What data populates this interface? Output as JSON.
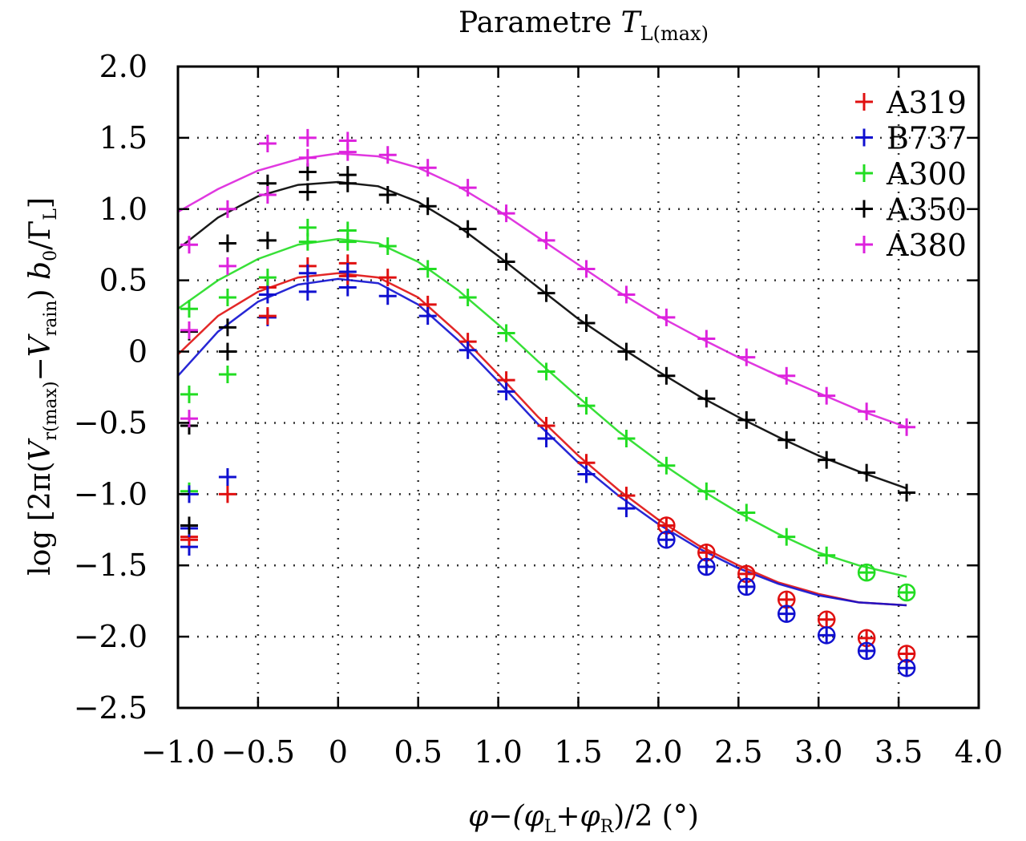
{
  "chart_data": {
    "type": "line",
    "title": "Parametre T_L(max)",
    "title_parts": {
      "main": "Parametre ",
      "italic": "T",
      "sub": "L(max)"
    },
    "xlabel": "φ−(φL+φR)/2 (°)",
    "xlabel_parts": {
      "a": "φ−(φ",
      "sub1": "L",
      "b": "+φ",
      "sub2": "R",
      "c": ")/2 (°)"
    },
    "ylabel": "log [2π(V_r(max) − V_rain) b0/ΓL]",
    "ylabel_parts": {
      "a": "log [2π(",
      "v1": "V",
      "sub1": "r(max)",
      "minus": "−",
      "v2": "V",
      "sub2": "rain",
      "b": ") ",
      "b0": "b",
      "sub3": "0",
      "c": "/Γ",
      "sub4": "L",
      "d": "]"
    },
    "xlim": [
      -1.0,
      4.0
    ],
    "ylim": [
      -2.5,
      2.0
    ],
    "xticks": [
      -1.0,
      -0.5,
      0,
      0.5,
      1.0,
      1.5,
      2.0,
      2.5,
      3.0,
      3.5,
      4.0
    ],
    "xtick_labels": [
      "−1.0",
      "−0.5",
      "0",
      "0.5",
      "1.0",
      "1.5",
      "2.0",
      "2.5",
      "3.0",
      "3.5",
      "4.0"
    ],
    "yticks": [
      2.0,
      1.5,
      1.0,
      0.5,
      0,
      -0.5,
      -1.0,
      -1.5,
      -2.0,
      -2.5
    ],
    "ytick_labels": [
      "2.0",
      "1.5",
      "1.0",
      "0.5",
      "0",
      "−0.5",
      "−1.0",
      "−1.5",
      "−2.0",
      "−2.5"
    ],
    "grid": true,
    "legend_position": "top-right",
    "x": [
      -0.94,
      -0.69,
      -0.44,
      -0.19,
      0.06,
      0.31,
      0.56,
      0.81,
      1.05,
      1.3,
      1.55,
      1.8,
      2.05,
      2.3,
      2.55,
      2.8,
      3.05,
      3.3,
      3.55
    ],
    "series": [
      {
        "name": "A319",
        "color": "#e01010",
        "points": [
          [
            -0.93,
            -1.32
          ],
          [
            -0.69,
            -1.0
          ],
          [
            -0.44,
            0.45
          ],
          [
            -0.19,
            0.6
          ],
          [
            0.06,
            0.62
          ],
          [
            0.31,
            0.52
          ],
          [
            0.56,
            0.33
          ],
          [
            0.81,
            0.07
          ],
          [
            1.05,
            -0.2
          ],
          [
            1.3,
            -0.52
          ],
          [
            1.55,
            -0.78
          ],
          [
            1.8,
            -1.01
          ],
          [
            2.05,
            -1.22
          ],
          [
            2.3,
            -1.41
          ],
          [
            2.55,
            -1.56
          ],
          [
            2.8,
            -1.74
          ],
          [
            3.05,
            -1.88
          ],
          [
            3.3,
            -2.01
          ],
          [
            3.55,
            -2.12
          ]
        ],
        "circled_from_x": 2.05,
        "fit": [
          [
            -1.0,
            -0.02
          ],
          [
            -0.75,
            0.25
          ],
          [
            -0.5,
            0.42
          ],
          [
            -0.25,
            0.52
          ],
          [
            0.0,
            0.55
          ],
          [
            0.25,
            0.52
          ],
          [
            0.5,
            0.38
          ],
          [
            0.75,
            0.13
          ],
          [
            1.0,
            -0.16
          ],
          [
            1.25,
            -0.46
          ],
          [
            1.5,
            -0.73
          ],
          [
            1.75,
            -0.97
          ],
          [
            2.0,
            -1.18
          ],
          [
            2.25,
            -1.36
          ],
          [
            2.5,
            -1.5
          ],
          [
            2.75,
            -1.62
          ],
          [
            3.0,
            -1.7
          ],
          [
            3.25,
            -1.76
          ],
          [
            3.55,
            -1.78
          ]
        ]
      },
      {
        "name": "B737",
        "color": "#1010d0",
        "points": [
          [
            -0.93,
            -1.37
          ],
          [
            -0.69,
            -0.88
          ],
          [
            -0.44,
            0.24
          ],
          [
            -0.19,
            0.42
          ],
          [
            0.06,
            0.45
          ],
          [
            0.31,
            0.39
          ],
          [
            0.56,
            0.25
          ],
          [
            0.81,
            0.01
          ],
          [
            1.05,
            -0.28
          ],
          [
            1.3,
            -0.61
          ],
          [
            1.55,
            -0.86
          ],
          [
            1.8,
            -1.1
          ],
          [
            2.05,
            -1.32
          ],
          [
            2.3,
            -1.51
          ],
          [
            2.55,
            -1.65
          ],
          [
            2.8,
            -1.84
          ],
          [
            3.05,
            -1.99
          ],
          [
            3.3,
            -2.1
          ],
          [
            3.55,
            -2.22
          ]
        ],
        "circled_from_x": 2.05,
        "fit": [
          [
            -1.0,
            -0.17
          ],
          [
            -0.75,
            0.14
          ],
          [
            -0.5,
            0.35
          ],
          [
            -0.25,
            0.47
          ],
          [
            0.0,
            0.51
          ],
          [
            0.25,
            0.48
          ],
          [
            0.5,
            0.33
          ],
          [
            0.75,
            0.08
          ],
          [
            1.0,
            -0.21
          ],
          [
            1.25,
            -0.51
          ],
          [
            1.5,
            -0.78
          ],
          [
            1.75,
            -1.01
          ],
          [
            2.0,
            -1.21
          ],
          [
            2.25,
            -1.38
          ],
          [
            2.5,
            -1.52
          ],
          [
            2.75,
            -1.63
          ],
          [
            3.0,
            -1.71
          ],
          [
            3.25,
            -1.76
          ],
          [
            3.55,
            -1.78
          ]
        ]
      },
      {
        "name": "A300",
        "color": "#22dd22",
        "points": [
          [
            -0.93,
            -0.98
          ],
          [
            -0.69,
            -0.16
          ],
          [
            -0.44,
            0.52
          ],
          [
            -0.19,
            0.87
          ],
          [
            0.06,
            0.85
          ],
          [
            0.31,
            0.74
          ],
          [
            0.56,
            0.58
          ],
          [
            0.81,
            0.38
          ],
          [
            1.05,
            0.13
          ],
          [
            1.3,
            -0.14
          ],
          [
            1.55,
            -0.38
          ],
          [
            1.8,
            -0.61
          ],
          [
            2.05,
            -0.8
          ],
          [
            2.3,
            -0.98
          ],
          [
            2.55,
            -1.13
          ],
          [
            2.8,
            -1.3
          ],
          [
            3.05,
            -1.43
          ],
          [
            3.3,
            -1.55
          ],
          [
            3.55,
            -1.69
          ]
        ],
        "circled_from_x": 3.3,
        "fit": [
          [
            -1.0,
            0.3
          ],
          [
            -0.75,
            0.5
          ],
          [
            -0.5,
            0.65
          ],
          [
            -0.25,
            0.75
          ],
          [
            0.0,
            0.79
          ],
          [
            0.25,
            0.76
          ],
          [
            0.5,
            0.63
          ],
          [
            0.75,
            0.43
          ],
          [
            1.0,
            0.19
          ],
          [
            1.25,
            -0.07
          ],
          [
            1.5,
            -0.32
          ],
          [
            1.75,
            -0.56
          ],
          [
            2.0,
            -0.77
          ],
          [
            2.25,
            -0.96
          ],
          [
            2.5,
            -1.13
          ],
          [
            2.75,
            -1.28
          ],
          [
            3.0,
            -1.41
          ],
          [
            3.25,
            -1.5
          ],
          [
            3.55,
            -1.58
          ]
        ]
      },
      {
        "name": "A350",
        "color": "#000000",
        "points": [
          [
            -0.93,
            -0.52
          ],
          [
            -0.69,
            0.0
          ],
          [
            -0.44,
            0.78
          ],
          [
            -0.19,
            1.26
          ],
          [
            0.06,
            1.24
          ],
          [
            0.31,
            1.1
          ],
          [
            0.56,
            1.02
          ],
          [
            0.81,
            0.86
          ],
          [
            1.05,
            0.63
          ],
          [
            1.3,
            0.41
          ],
          [
            1.55,
            0.2
          ],
          [
            1.8,
            0.0
          ],
          [
            2.05,
            -0.17
          ],
          [
            2.3,
            -0.33
          ],
          [
            2.55,
            -0.48
          ],
          [
            2.8,
            -0.62
          ],
          [
            3.05,
            -0.76
          ],
          [
            3.3,
            -0.85
          ],
          [
            3.55,
            -0.99
          ]
        ],
        "circled_from_x": null,
        "fit": [
          [
            -1.0,
            0.72
          ],
          [
            -0.75,
            0.94
          ],
          [
            -0.5,
            1.09
          ],
          [
            -0.25,
            1.17
          ],
          [
            0.0,
            1.19
          ],
          [
            0.25,
            1.16
          ],
          [
            0.5,
            1.05
          ],
          [
            0.75,
            0.88
          ],
          [
            1.0,
            0.67
          ],
          [
            1.25,
            0.45
          ],
          [
            1.5,
            0.23
          ],
          [
            1.75,
            0.04
          ],
          [
            2.0,
            -0.14
          ],
          [
            2.25,
            -0.31
          ],
          [
            2.5,
            -0.46
          ],
          [
            2.75,
            -0.6
          ],
          [
            3.0,
            -0.73
          ],
          [
            3.25,
            -0.84
          ],
          [
            3.55,
            -0.96
          ]
        ]
      },
      {
        "name": "A380",
        "color": "#dd22dd",
        "points": [
          [
            -0.93,
            0.75
          ],
          [
            -0.69,
            0.6
          ],
          [
            -0.44,
            1.46
          ],
          [
            -0.19,
            1.5
          ],
          [
            0.06,
            1.48
          ],
          [
            0.31,
            1.38
          ],
          [
            0.56,
            1.29
          ],
          [
            0.81,
            1.15
          ],
          [
            1.05,
            0.97
          ],
          [
            1.3,
            0.78
          ],
          [
            1.55,
            0.58
          ],
          [
            1.8,
            0.4
          ],
          [
            2.05,
            0.24
          ],
          [
            2.3,
            0.09
          ],
          [
            2.55,
            -0.04
          ],
          [
            2.8,
            -0.17
          ],
          [
            3.05,
            -0.31
          ],
          [
            3.3,
            -0.42
          ],
          [
            3.55,
            -0.53
          ]
        ],
        "circled_from_x": null,
        "fit": [
          [
            -1.0,
            0.98
          ],
          [
            -0.75,
            1.14
          ],
          [
            -0.5,
            1.27
          ],
          [
            -0.25,
            1.35
          ],
          [
            0.0,
            1.39
          ],
          [
            0.25,
            1.37
          ],
          [
            0.5,
            1.29
          ],
          [
            0.75,
            1.16
          ],
          [
            1.0,
            0.99
          ],
          [
            1.25,
            0.8
          ],
          [
            1.5,
            0.61
          ],
          [
            1.75,
            0.42
          ],
          [
            2.0,
            0.25
          ],
          [
            2.25,
            0.1
          ],
          [
            2.5,
            -0.04
          ],
          [
            2.75,
            -0.17
          ],
          [
            3.0,
            -0.29
          ],
          [
            3.25,
            -0.41
          ],
          [
            3.55,
            -0.53
          ]
        ]
      }
    ],
    "extra_points": [
      {
        "series": "A319",
        "x": -0.93,
        "y": -1.3
      },
      {
        "series": "B737",
        "x": -0.93,
        "y": -1.24
      },
      {
        "series": "B737",
        "x": -0.93,
        "y": -1.0
      },
      {
        "series": "A350",
        "x": -0.93,
        "y": -1.22
      },
      {
        "series": "A350",
        "x": -0.93,
        "y": 0.14
      },
      {
        "series": "A300",
        "x": -0.93,
        "y": -0.3
      },
      {
        "series": "A300",
        "x": -0.93,
        "y": 0.3
      },
      {
        "series": "A380",
        "x": -0.93,
        "y": -0.47
      },
      {
        "series": "A380",
        "x": -0.93,
        "y": 0.15
      },
      {
        "series": "A350",
        "x": -0.69,
        "y": 0.17
      },
      {
        "series": "A350",
        "x": -0.69,
        "y": 0.76
      },
      {
        "series": "A300",
        "x": -0.69,
        "y": 0.38
      },
      {
        "series": "A380",
        "x": -0.69,
        "y": 1.0
      },
      {
        "series": "A319",
        "x": -0.44,
        "y": 0.25
      },
      {
        "series": "B737",
        "x": -0.44,
        "y": 0.4
      },
      {
        "series": "A350",
        "x": -0.44,
        "y": 1.18
      },
      {
        "series": "A380",
        "x": -0.44,
        "y": 1.1
      },
      {
        "series": "A300",
        "x": -0.19,
        "y": 0.77
      },
      {
        "series": "A350",
        "x": -0.19,
        "y": 1.12
      },
      {
        "series": "A380",
        "x": -0.19,
        "y": 1.36
      },
      {
        "series": "B737",
        "x": -0.19,
        "y": 0.55
      },
      {
        "series": "A319",
        "x": 0.06,
        "y": 0.53
      },
      {
        "series": "B737",
        "x": 0.06,
        "y": 0.56
      },
      {
        "series": "A300",
        "x": 0.06,
        "y": 0.77
      },
      {
        "series": "A350",
        "x": 0.06,
        "y": 1.18
      },
      {
        "series": "A380",
        "x": 0.06,
        "y": 1.4
      }
    ]
  }
}
